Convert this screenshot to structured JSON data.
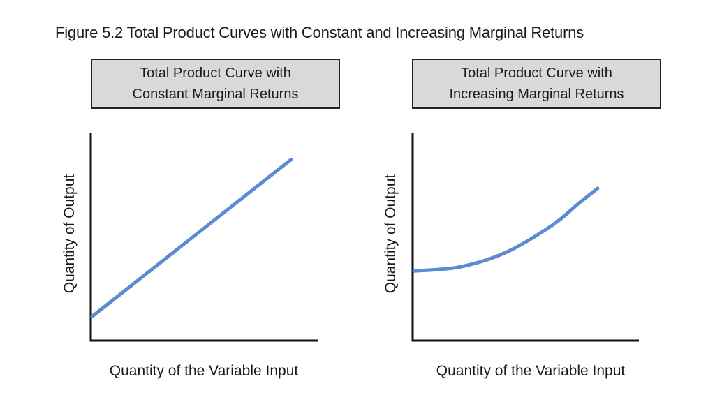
{
  "figure_title": "Figure 5.2  Total Product Curves with Constant and Increasing Marginal Returns",
  "colors": {
    "curve": "#5b8bd0",
    "panel_title_bg": "#d9d9d9",
    "axis": "#111111"
  },
  "chart_data": [
    {
      "type": "line",
      "title_lines": [
        "Total Product Curve with",
        "Constant Marginal Returns"
      ],
      "xlabel": "Quantity of the Variable Input",
      "ylabel": "Quantity of Output",
      "tick_labels": "none",
      "grid": false,
      "series": [
        {
          "x": [
            0,
            1
          ],
          "y": [
            0.11,
            0.87
          ]
        }
      ]
    },
    {
      "type": "line",
      "title_lines": [
        "Total Product Curve with",
        "Increasing Marginal Returns"
      ],
      "xlabel": "Quantity of the Variable Input",
      "ylabel": "Quantity of Output",
      "tick_labels": "none",
      "grid": false,
      "series": [
        {
          "x": [
            0,
            0.25,
            0.5,
            0.75,
            0.9,
            1
          ],
          "y": [
            0.33,
            0.35,
            0.42,
            0.55,
            0.66,
            0.73
          ]
        }
      ]
    }
  ]
}
